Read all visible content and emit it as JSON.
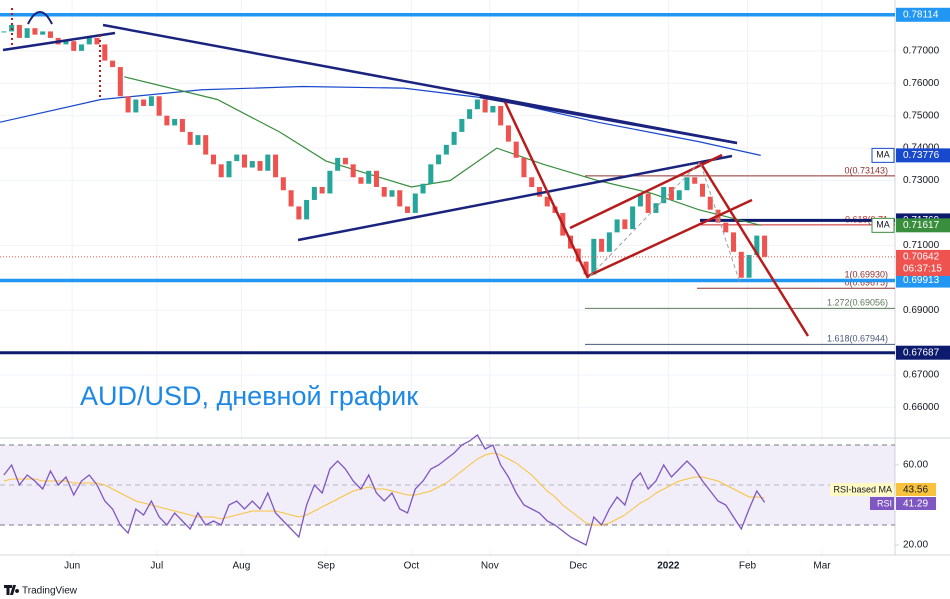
{
  "brand": "TradingView",
  "chart_data": [
    {
      "type": "candlestick",
      "title": "AUD/USD, дневной график",
      "up_color": "#26a69a",
      "down_color": "#ef5350",
      "close": [
        0.776,
        0.778,
        0.774,
        0.777,
        0.775,
        0.776,
        0.774,
        0.772,
        0.773,
        0.77,
        0.772,
        0.774,
        0.772,
        0.767,
        0.765,
        0.756,
        0.751,
        0.755,
        0.753,
        0.756,
        0.75,
        0.747,
        0.749,
        0.745,
        0.741,
        0.744,
        0.738,
        0.735,
        0.731,
        0.736,
        0.738,
        0.734,
        0.736,
        0.733,
        0.738,
        0.731,
        0.727,
        0.722,
        0.718,
        0.724,
        0.728,
        0.726,
        0.733,
        0.737,
        0.735,
        0.731,
        0.729,
        0.733,
        0.728,
        0.725,
        0.727,
        0.722,
        0.72,
        0.726,
        0.729,
        0.735,
        0.738,
        0.741,
        0.745,
        0.749,
        0.752,
        0.755,
        0.751,
        0.753,
        0.747,
        0.742,
        0.737,
        0.731,
        0.728,
        0.725,
        0.722,
        0.72,
        0.713,
        0.709,
        0.705,
        0.701,
        0.712,
        0.708,
        0.714,
        0.718,
        0.715,
        0.722,
        0.726,
        0.72,
        0.723,
        0.728,
        0.724,
        0.727,
        0.731,
        0.729,
        0.725,
        0.721,
        0.717,
        0.714,
        0.708,
        0.7,
        0.707,
        0.713,
        0.70642
      ],
      "countdown": "06:37:15",
      "series": [
        {
          "name": "MA",
          "color": "#1848cc",
          "x": [
            0,
            13,
            26,
            39,
            52,
            64,
            77,
            90,
            98
          ],
          "values": [
            0.748,
            0.755,
            0.758,
            0.759,
            0.7585,
            0.755,
            0.748,
            0.742,
            0.73776
          ]
        },
        {
          "name": "MA",
          "color": "#388e3c",
          "x": [
            16,
            28,
            36,
            42,
            53,
            58,
            64,
            70,
            77,
            84,
            90,
            98
          ],
          "values": [
            0.762,
            0.755,
            0.745,
            0.736,
            0.728,
            0.73,
            0.74,
            0.735,
            0.73,
            0.726,
            0.721,
            0.71617
          ]
        }
      ],
      "levels": [
        {
          "value": 0.78114,
          "color": "#2196f3"
        },
        {
          "value": 0.71769,
          "color": "#0d1b6e"
        },
        {
          "value": 0.69913,
          "color": "#2196f3"
        },
        {
          "value": 0.67687,
          "color": "#0d1b6e"
        }
      ],
      "fib_levels": [
        {
          "label": "0(0.73143)",
          "value": 0.73143,
          "color": "#8d3030"
        },
        {
          "label": "0.618(0.71",
          "value": 0.7163,
          "color": "#c62828"
        },
        {
          "label": "1(0.69930)",
          "value": 0.6993,
          "color": "#8d3030"
        },
        {
          "label": "0(0.69675)",
          "value": 0.69675,
          "color": "#8d3030"
        },
        {
          "label": "1.272(0.69056)",
          "value": 0.69056,
          "color": "#5d7a5d"
        },
        {
          "label": "1.618(0.67944)",
          "value": 0.67944,
          "color": "#4a5a7a"
        }
      ],
      "ylim": [
        0.6524,
        0.7857
      ],
      "yticks": [
        {
          "value": 0.77,
          "label": "0.77000"
        },
        {
          "value": 0.76,
          "label": "0.76000"
        },
        {
          "value": 0.75,
          "label": "0.75000"
        },
        {
          "value": 0.74,
          "label": "0.74000"
        },
        {
          "value": 0.73,
          "label": "0.73000"
        },
        {
          "value": 0.71,
          "label": "0.71000"
        },
        {
          "value": 0.69,
          "label": "0.69000"
        },
        {
          "value": 0.67,
          "label": "0.67000"
        },
        {
          "value": 0.66,
          "label": "0.66000"
        }
      ],
      "xlim": [
        0,
        115.3
      ],
      "xticks": [
        {
          "value": 9.3,
          "label": "Jun"
        },
        {
          "value": 20.2,
          "label": "Jul"
        },
        {
          "value": 31.1,
          "label": "Aug"
        },
        {
          "value": 42,
          "label": "Sep"
        },
        {
          "value": 53,
          "label": "Oct"
        },
        {
          "value": 63.1,
          "label": "Nov"
        },
        {
          "value": 74.5,
          "label": "Dec"
        },
        {
          "value": 86.1,
          "label": "2022"
        },
        {
          "value": 96.3,
          "label": "Feb"
        },
        {
          "value": 105.9,
          "label": "Mar"
        }
      ],
      "grid": true
    },
    {
      "type": "line",
      "series": [
        {
          "name": "RSI-based MA",
          "color": "#f9c23c",
          "values": [
            52,
            53,
            53,
            53,
            53,
            52,
            52,
            52,
            52,
            51,
            51,
            51,
            51,
            50,
            48,
            46,
            44,
            42,
            41,
            40,
            39,
            38,
            37,
            36,
            35,
            34,
            34,
            34,
            33,
            34,
            35,
            36,
            37,
            37,
            37,
            37,
            36,
            35,
            34,
            35,
            37,
            39,
            41,
            43,
            45,
            47,
            48,
            49,
            48,
            48,
            47,
            46,
            45,
            45,
            46,
            47,
            49,
            51,
            54,
            57,
            60,
            63,
            65,
            66,
            65,
            63,
            61,
            58,
            55,
            51,
            47,
            44,
            40,
            37,
            34,
            31,
            30,
            30,
            31,
            33,
            35,
            38,
            41,
            43,
            46,
            48,
            50,
            52,
            53,
            54,
            54,
            53,
            52,
            50,
            48,
            46,
            44,
            44,
            43.56
          ]
        },
        {
          "name": "RSI",
          "color": "#7e57c2",
          "values": [
            55,
            60,
            50,
            55,
            52,
            48,
            57,
            50,
            54,
            45,
            52,
            55,
            50,
            42,
            38,
            30,
            26,
            38,
            35,
            42,
            34,
            30,
            36,
            32,
            28,
            36,
            30,
            32,
            30,
            40,
            42,
            38,
            42,
            38,
            46,
            36,
            32,
            28,
            24,
            40,
            50,
            46,
            58,
            62,
            58,
            52,
            48,
            55,
            46,
            42,
            46,
            38,
            36,
            48,
            52,
            58,
            60,
            63,
            66,
            70,
            72,
            75,
            68,
            70,
            60,
            54,
            46,
            40,
            38,
            36,
            32,
            30,
            27,
            24,
            22,
            20,
            34,
            30,
            38,
            44,
            40,
            52,
            56,
            48,
            52,
            60,
            54,
            58,
            62,
            58,
            52,
            47,
            42,
            40,
            34,
            28,
            38,
            47,
            41.29
          ]
        }
      ],
      "band_lines": [
        70,
        50,
        30
      ],
      "ylim": [
        18.5,
        72.5
      ],
      "yticks": [
        {
          "value": 60,
          "label": "60.00"
        },
        {
          "value": 20,
          "label": "20.00"
        }
      ]
    }
  ]
}
